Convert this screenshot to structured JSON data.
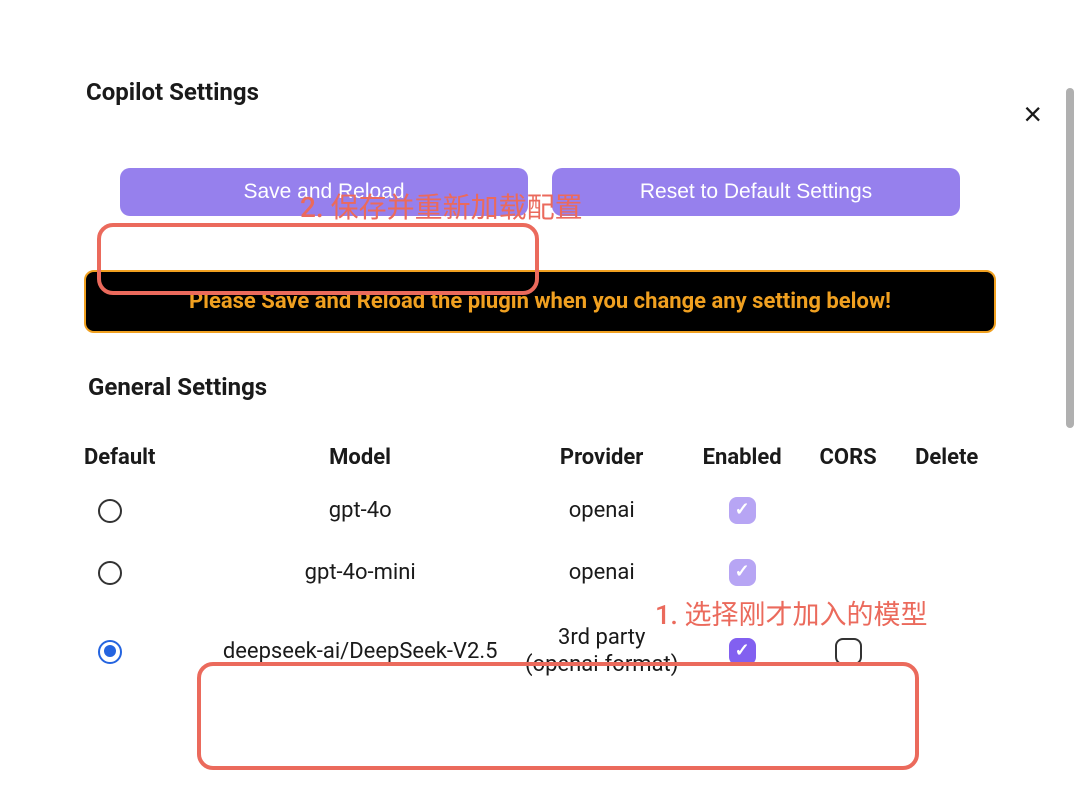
{
  "colors": {
    "accent": "#9680ed",
    "accent_checkbox": "#8260f0",
    "accent_checkbox_soft": "#b7a5f4",
    "warning_bg": "#000000",
    "warning_border": "#f0a020",
    "warning_text": "#f0a020",
    "annotation": "#eb6a5c",
    "text": "#1a1a1a",
    "radio_checked": "#2464e0"
  },
  "close_label": "×",
  "copilot_title": "Copilot Settings",
  "annotations": {
    "a1": "2. 保存并重新加载配置",
    "a2": "1. 选择刚才加入的模型"
  },
  "buttons": {
    "save_reload": "Save and Reload",
    "reset": "Reset to Default Settings"
  },
  "warning": "Please Save and Reload the plugin when you change any setting below!",
  "general_title": "General Settings",
  "table": {
    "headers": {
      "default": "Default",
      "model": "Model",
      "provider": "Provider",
      "enabled": "Enabled",
      "cors": "CORS",
      "delete": "Delete"
    },
    "rows": [
      {
        "default_selected": false,
        "model": "gpt-4o",
        "provider": "openai",
        "enabled": true,
        "enabled_soft": true,
        "cors": null,
        "delete": null
      },
      {
        "default_selected": false,
        "model": "gpt-4o-mini",
        "provider": "openai",
        "enabled": true,
        "enabled_soft": true,
        "cors": null,
        "delete": null
      },
      {
        "default_selected": true,
        "model": "deepseek-ai/DeepSeek-V2.5",
        "provider": "3rd party (openai-format)",
        "enabled": true,
        "enabled_soft": false,
        "cors": false,
        "delete": null
      }
    ]
  }
}
